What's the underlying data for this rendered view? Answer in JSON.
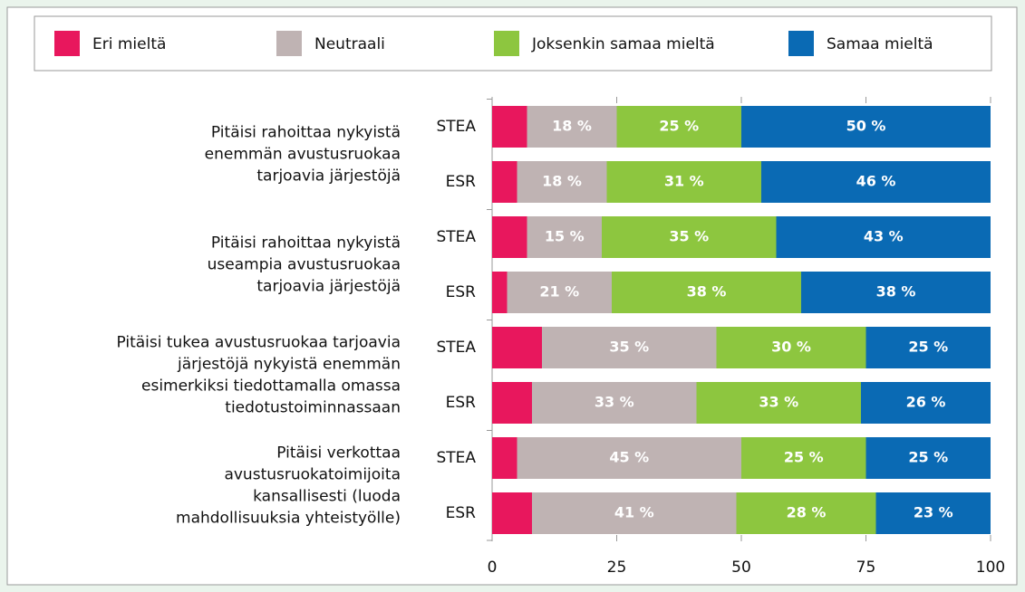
{
  "chart_data": {
    "type": "stacked-bar-horizontal",
    "categories": [
      "STEA",
      "ESR",
      "STEA",
      "ESR",
      "STEA",
      "ESR",
      "STEA",
      "ESR"
    ],
    "group_labels": [
      [
        "Pitäisi rahoittaa nykyistä",
        "enemmän avustusruokaa",
        "tarjoavia järjestöjä"
      ],
      [
        "Pitäisi rahoittaa nykyistä",
        "useampia avustusruokaa",
        "tarjoavia järjestöjä"
      ],
      [
        "Pitäisi tukea avustusruokaa tarjoavia",
        "järjestöjä nykyistä enemmän",
        "esimerkiksi tiedottamalla omassa",
        "tiedotustoiminnassaan"
      ],
      [
        "Pitäisi verkottaa",
        "avustusruokatoimijoita",
        "kansallisesti (luoda",
        "mahdollisuuksia yhteistyölle)"
      ]
    ],
    "series": [
      {
        "name": "Eri mieltä",
        "color": "#e8175d",
        "values": [
          7,
          5,
          7,
          3,
          10,
          8,
          5,
          8
        ]
      },
      {
        "name": "Neutraali",
        "color": "#bfb3b3",
        "values": [
          18,
          18,
          15,
          21,
          35,
          33,
          45,
          41
        ],
        "value_labels": [
          "18 %",
          "18 %",
          "15 %",
          "21 %",
          "35 %",
          "33 %",
          "45 %",
          "41 %"
        ]
      },
      {
        "name": "Joksenkin samaa mieltä",
        "color": "#8dc63f",
        "values": [
          25,
          31,
          35,
          38,
          30,
          33,
          25,
          28
        ],
        "value_labels": [
          "25 %",
          "31 %",
          "35 %",
          "38 %",
          "30 %",
          "33 %",
          "25 %",
          "28 %"
        ]
      },
      {
        "name": "Samaa mieltä",
        "color": "#0a6ab4",
        "values": [
          50,
          46,
          43,
          38,
          25,
          26,
          25,
          23
        ],
        "value_labels": [
          "50 %",
          "46 %",
          "43 %",
          "38 %",
          "25 %",
          "26 %",
          "25 %",
          "23 %"
        ]
      }
    ],
    "xlim": [
      0,
      100
    ],
    "xticks": [
      0,
      25,
      50,
      75,
      100
    ]
  }
}
